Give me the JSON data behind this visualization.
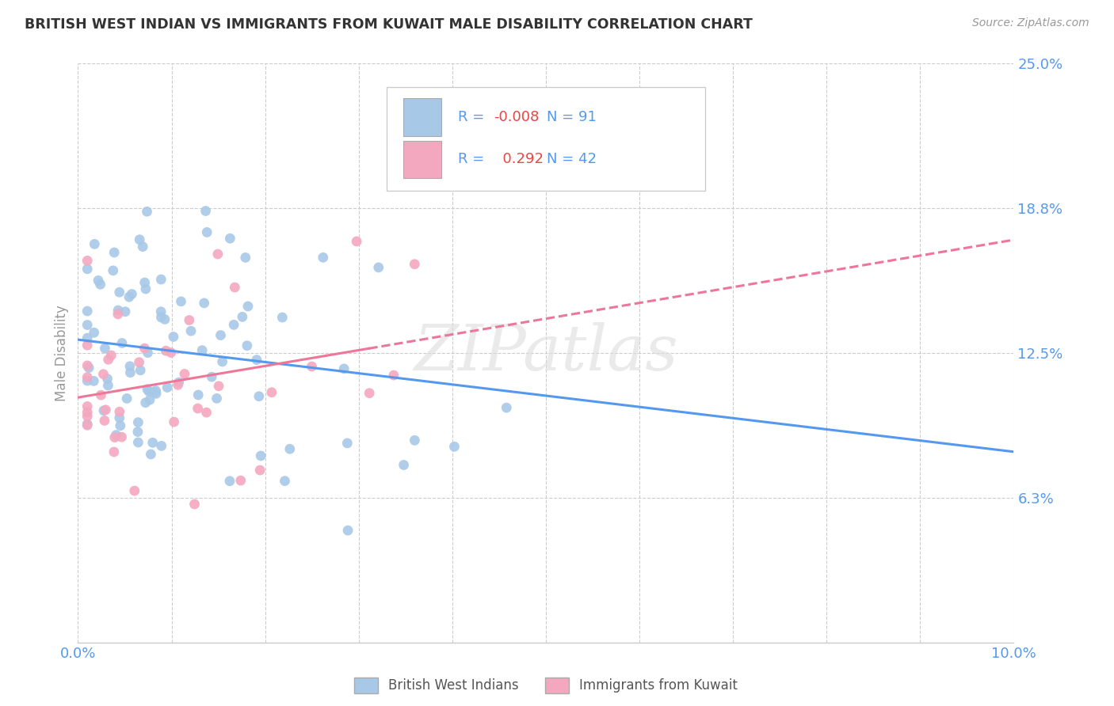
{
  "title": "BRITISH WEST INDIAN VS IMMIGRANTS FROM KUWAIT MALE DISABILITY CORRELATION CHART",
  "source": "Source: ZipAtlas.com",
  "ylabel": "Male Disability",
  "xlim": [
    0.0,
    0.1
  ],
  "ylim": [
    0.0,
    0.25
  ],
  "ytick_labels": [
    "",
    "6.3%",
    "12.5%",
    "18.8%",
    "25.0%"
  ],
  "ytick_values": [
    0.0,
    0.0625,
    0.125,
    0.1875,
    0.25
  ],
  "xtick_values": [
    0.0,
    0.01,
    0.02,
    0.03,
    0.04,
    0.05,
    0.06,
    0.07,
    0.08,
    0.09,
    0.1
  ],
  "series1_color": "#a8c8e8",
  "series2_color": "#f4a8c0",
  "series1_line_color": "#5599ee",
  "series2_line_color": "#ee7799",
  "series1_label": "British West Indians",
  "series2_label": "Immigrants from Kuwait",
  "R1": -0.008,
  "N1": 91,
  "R2": 0.292,
  "N2": 42,
  "watermark": "ZIPatlas",
  "background_color": "#ffffff",
  "grid_color": "#cccccc",
  "title_color": "#333333",
  "tick_color": "#5599ee",
  "ylabel_color": "#999999",
  "legend_text_color": "#5599ee",
  "r_value_color": "#ee4444",
  "source_color": "#999999"
}
